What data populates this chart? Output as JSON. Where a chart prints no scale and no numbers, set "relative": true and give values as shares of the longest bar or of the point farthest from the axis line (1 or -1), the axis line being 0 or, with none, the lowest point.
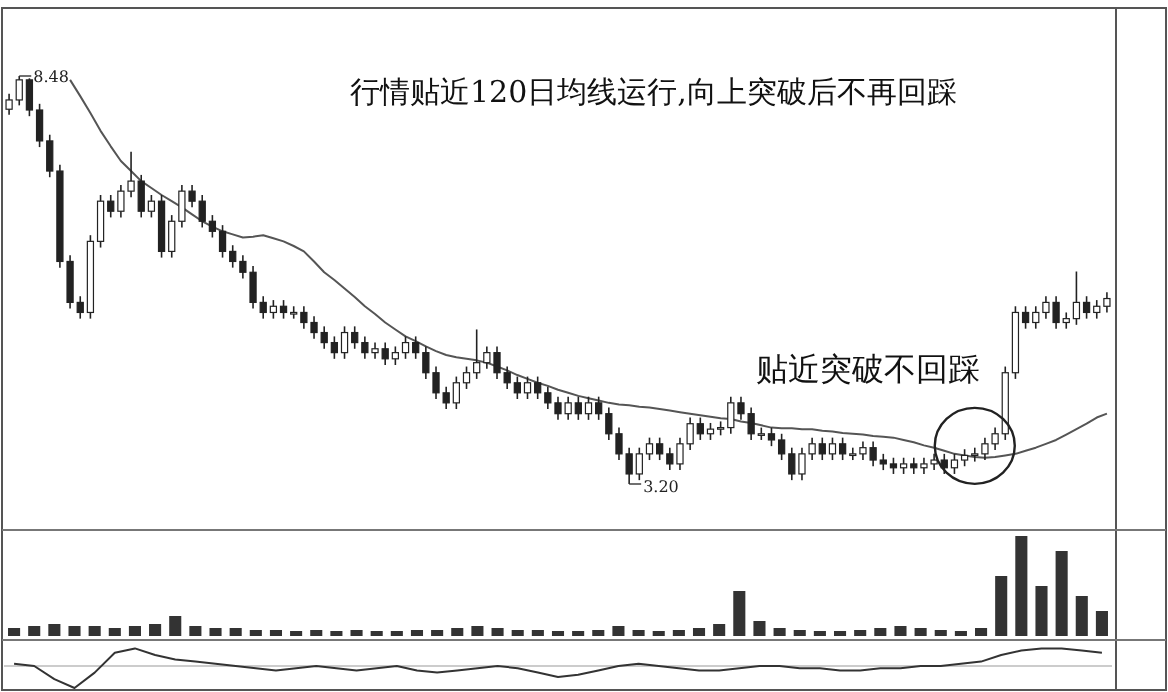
{
  "chart_data": [
    {
      "type": "candlestick",
      "title": "行情贴近120日均线运行,向上突破后不再回踩",
      "color": "#222222",
      "categories": [
        null,
        null,
        null,
        null,
        null,
        null,
        null,
        null,
        null,
        null,
        null,
        null,
        null,
        null,
        null,
        null,
        null,
        null,
        null,
        null,
        null,
        null,
        null,
        null,
        null,
        null,
        null,
        null,
        null,
        null,
        null,
        null,
        null,
        null,
        null,
        null,
        null,
        null,
        null,
        null,
        null,
        null,
        null,
        null,
        null,
        null,
        null,
        null,
        null,
        null,
        null,
        null,
        null,
        null,
        null,
        null,
        null,
        null,
        null,
        null,
        null,
        null,
        null,
        null,
        null,
        null,
        null,
        null,
        null,
        null,
        null,
        null,
        null,
        null,
        null,
        null,
        null,
        null,
        null,
        null,
        null,
        null,
        null,
        null,
        null,
        null,
        null,
        null,
        null,
        null,
        null,
        null,
        null,
        null,
        null,
        null,
        null,
        null,
        null,
        null,
        null,
        null,
        null,
        null,
        null,
        null,
        null,
        null,
        null
      ],
      "ohlc": [
        [
          8.05,
          8.25,
          7.98,
          8.17
        ],
        [
          8.17,
          8.48,
          8.1,
          8.43
        ],
        [
          8.43,
          8.45,
          7.96,
          8.04
        ],
        [
          8.04,
          8.12,
          7.56,
          7.64
        ],
        [
          7.64,
          7.72,
          7.17,
          7.25
        ],
        [
          7.25,
          7.33,
          6.0,
          6.08
        ],
        [
          6.08,
          6.16,
          5.47,
          5.55
        ],
        [
          5.55,
          5.63,
          5.34,
          5.42
        ],
        [
          5.42,
          6.42,
          5.34,
          6.34
        ],
        [
          6.34,
          6.94,
          6.26,
          6.86
        ],
        [
          6.86,
          6.94,
          6.65,
          6.73
        ],
        [
          6.73,
          7.07,
          6.65,
          6.99
        ],
        [
          6.99,
          7.5,
          6.91,
          7.12
        ],
        [
          7.12,
          7.2,
          6.65,
          6.73
        ],
        [
          6.73,
          6.94,
          6.65,
          6.86
        ],
        [
          6.86,
          6.94,
          6.13,
          6.21
        ],
        [
          6.21,
          6.68,
          6.13,
          6.6
        ],
        [
          6.6,
          7.07,
          6.52,
          6.99
        ],
        [
          6.99,
          7.07,
          6.78,
          6.86
        ],
        [
          6.86,
          6.94,
          6.52,
          6.6
        ],
        [
          6.6,
          6.68,
          6.39,
          6.47
        ],
        [
          6.47,
          6.55,
          6.13,
          6.21
        ],
        [
          6.21,
          6.29,
          6.0,
          6.08
        ],
        [
          6.08,
          6.16,
          5.86,
          5.94
        ],
        [
          5.94,
          6.02,
          5.47,
          5.55
        ],
        [
          5.55,
          5.63,
          5.34,
          5.42
        ],
        [
          5.42,
          5.58,
          5.34,
          5.5
        ],
        [
          5.5,
          5.58,
          5.34,
          5.42
        ],
        [
          5.42,
          5.5,
          5.34,
          5.42
        ],
        [
          5.42,
          5.5,
          5.21,
          5.29
        ],
        [
          5.29,
          5.37,
          5.08,
          5.16
        ],
        [
          5.16,
          5.24,
          4.95,
          5.03
        ],
        [
          5.03,
          5.11,
          4.82,
          4.9
        ],
        [
          4.9,
          5.24,
          4.82,
          5.16
        ],
        [
          5.16,
          5.24,
          4.95,
          5.03
        ],
        [
          5.03,
          5.11,
          4.82,
          4.9
        ],
        [
          4.9,
          5.03,
          4.82,
          4.95
        ],
        [
          4.95,
          5.03,
          4.74,
          4.82
        ],
        [
          4.82,
          4.98,
          4.74,
          4.9
        ],
        [
          4.9,
          5.11,
          4.82,
          5.03
        ],
        [
          5.03,
          5.11,
          4.82,
          4.9
        ],
        [
          4.9,
          4.98,
          4.56,
          4.64
        ],
        [
          4.64,
          4.72,
          4.3,
          4.38
        ],
        [
          4.38,
          4.46,
          4.17,
          4.25
        ],
        [
          4.25,
          4.59,
          4.17,
          4.51
        ],
        [
          4.51,
          4.72,
          4.43,
          4.64
        ],
        [
          4.64,
          5.2,
          4.56,
          4.77
        ],
        [
          4.77,
          4.98,
          4.69,
          4.9
        ],
        [
          4.9,
          4.98,
          4.56,
          4.64
        ],
        [
          4.64,
          4.72,
          4.43,
          4.51
        ],
        [
          4.51,
          4.59,
          4.3,
          4.38
        ],
        [
          4.38,
          4.59,
          4.3,
          4.51
        ],
        [
          4.51,
          4.59,
          4.3,
          4.38
        ],
        [
          4.38,
          4.46,
          4.17,
          4.25
        ],
        [
          4.25,
          4.33,
          4.03,
          4.11
        ],
        [
          4.11,
          4.33,
          4.03,
          4.25
        ],
        [
          4.25,
          4.33,
          4.03,
          4.11
        ],
        [
          4.11,
          4.33,
          4.03,
          4.25
        ],
        [
          4.25,
          4.33,
          4.03,
          4.11
        ],
        [
          4.11,
          4.19,
          3.77,
          3.85
        ],
        [
          3.85,
          3.93,
          3.51,
          3.59
        ],
        [
          3.59,
          3.67,
          3.2,
          3.33
        ],
        [
          3.33,
          3.67,
          3.25,
          3.59
        ],
        [
          3.59,
          3.8,
          3.51,
          3.72
        ],
        [
          3.72,
          3.8,
          3.51,
          3.59
        ],
        [
          3.59,
          3.67,
          3.38,
          3.46
        ],
        [
          3.46,
          3.8,
          3.38,
          3.72
        ],
        [
          3.72,
          4.06,
          3.64,
          3.98
        ],
        [
          3.98,
          4.06,
          3.77,
          3.85
        ],
        [
          3.85,
          3.99,
          3.77,
          3.91
        ],
        [
          3.91,
          4.01,
          3.83,
          3.93
        ],
        [
          3.93,
          4.33,
          3.85,
          4.25
        ],
        [
          4.25,
          4.33,
          4.03,
          4.11
        ],
        [
          4.11,
          4.19,
          3.77,
          3.85
        ],
        [
          3.85,
          3.93,
          3.77,
          3.85
        ],
        [
          3.85,
          3.93,
          3.69,
          3.77
        ],
        [
          3.77,
          3.85,
          3.51,
          3.59
        ],
        [
          3.59,
          3.67,
          3.25,
          3.33
        ],
        [
          3.33,
          3.67,
          3.25,
          3.59
        ],
        [
          3.59,
          3.8,
          3.51,
          3.72
        ],
        [
          3.72,
          3.8,
          3.51,
          3.59
        ],
        [
          3.59,
          3.8,
          3.51,
          3.72
        ],
        [
          3.72,
          3.8,
          3.51,
          3.59
        ],
        [
          3.59,
          3.67,
          3.51,
          3.59
        ],
        [
          3.59,
          3.75,
          3.51,
          3.67
        ],
        [
          3.67,
          3.75,
          3.43,
          3.51
        ],
        [
          3.51,
          3.59,
          3.38,
          3.46
        ],
        [
          3.46,
          3.54,
          3.33,
          3.41
        ],
        [
          3.41,
          3.54,
          3.33,
          3.46
        ],
        [
          3.46,
          3.54,
          3.33,
          3.41
        ],
        [
          3.41,
          3.54,
          3.33,
          3.46
        ],
        [
          3.46,
          3.59,
          3.38,
          3.51
        ],
        [
          3.51,
          3.59,
          3.33,
          3.41
        ],
        [
          3.41,
          3.59,
          3.33,
          3.51
        ],
        [
          3.51,
          3.65,
          3.43,
          3.57
        ],
        [
          3.57,
          3.67,
          3.49,
          3.59
        ],
        [
          3.59,
          3.8,
          3.51,
          3.72
        ],
        [
          3.72,
          3.93,
          3.64,
          3.85
        ],
        [
          3.85,
          4.72,
          3.77,
          4.64
        ],
        [
          4.64,
          5.5,
          4.56,
          5.42
        ],
        [
          5.42,
          5.5,
          5.21,
          5.29
        ],
        [
          5.29,
          5.5,
          5.21,
          5.42
        ],
        [
          5.42,
          5.63,
          5.34,
          5.55
        ],
        [
          5.55,
          5.63,
          5.21,
          5.29
        ],
        [
          5.29,
          5.42,
          5.21,
          5.34
        ],
        [
          5.34,
          5.95,
          5.26,
          5.55
        ],
        [
          5.55,
          5.63,
          5.34,
          5.42
        ],
        [
          5.42,
          5.58,
          5.34,
          5.5
        ],
        [
          5.5,
          5.68,
          5.42,
          5.6
        ]
      ],
      "series": [
        {
          "type": "line",
          "color": "#555555",
          "values": [
            null,
            null,
            null,
            null,
            null,
            null,
            8.43,
            8.22,
            8.0,
            7.77,
            7.57,
            7.38,
            7.25,
            7.12,
            7.03,
            6.94,
            6.86,
            6.78,
            6.69,
            6.6,
            6.53,
            6.47,
            6.43,
            6.39,
            6.4,
            6.42,
            6.38,
            6.34,
            6.28,
            6.21,
            6.08,
            5.94,
            5.84,
            5.73,
            5.62,
            5.5,
            5.4,
            5.29,
            5.2,
            5.11,
            5.05,
            4.98,
            4.92,
            4.87,
            4.84,
            4.82,
            4.8,
            4.77,
            4.72,
            4.67,
            4.61,
            4.56,
            4.51,
            4.47,
            4.42,
            4.38,
            4.34,
            4.31,
            4.28,
            4.25,
            4.23,
            4.22,
            4.2,
            4.19,
            4.17,
            4.15,
            4.13,
            4.11,
            4.09,
            4.07,
            4.05,
            4.04,
            4.01,
            3.99,
            3.96,
            3.93,
            3.92,
            3.92,
            3.91,
            3.91,
            3.89,
            3.88,
            3.86,
            3.85,
            3.84,
            3.82,
            3.81,
            3.8,
            3.77,
            3.74,
            3.7,
            3.67,
            3.63,
            3.59,
            3.57,
            3.55,
            3.54,
            3.55,
            3.57,
            3.59,
            3.63,
            3.67,
            3.72,
            3.77,
            3.84,
            3.91,
            3.98,
            4.06,
            4.11
          ]
        }
      ],
      "annotations": [
        "8.48",
        "3.20",
        "贴近突破不回踩"
      ]
    },
    {
      "type": "bar",
      "relative": true,
      "color": "#333333",
      "categories": [
        null,
        null,
        null,
        null,
        null,
        null,
        null,
        null,
        null,
        null,
        null,
        null,
        null,
        null,
        null,
        null,
        null,
        null,
        null,
        null,
        null,
        null,
        null,
        null,
        null,
        null,
        null,
        null,
        null,
        null,
        null,
        null,
        null,
        null,
        null,
        null,
        null,
        null,
        null,
        null,
        null,
        null,
        null,
        null,
        null,
        null,
        null,
        null,
        null,
        null,
        null,
        null,
        null,
        null,
        null
      ],
      "values": [
        0.08,
        0.1,
        0.12,
        0.1,
        0.1,
        0.08,
        0.1,
        0.12,
        0.2,
        0.1,
        0.08,
        0.08,
        0.06,
        0.06,
        0.05,
        0.06,
        0.05,
        0.06,
        0.05,
        0.05,
        0.06,
        0.06,
        0.08,
        0.1,
        0.08,
        0.06,
        0.06,
        0.05,
        0.05,
        0.06,
        0.1,
        0.06,
        0.05,
        0.06,
        0.08,
        0.12,
        0.45,
        0.15,
        0.08,
        0.06,
        0.05,
        0.05,
        0.06,
        0.08,
        0.1,
        0.08,
        0.06,
        0.05,
        0.08,
        0.6,
        1.0,
        0.5,
        0.85,
        0.4,
        0.25
      ]
    },
    {
      "type": "line",
      "relative": true,
      "color": "#333333",
      "categories": [
        null,
        null,
        null,
        null,
        null,
        null,
        null,
        null,
        null,
        null,
        null,
        null,
        null,
        null,
        null,
        null,
        null,
        null,
        null,
        null,
        null,
        null,
        null,
        null,
        null,
        null,
        null,
        null,
        null,
        null,
        null,
        null,
        null,
        null,
        null,
        null,
        null,
        null,
        null,
        null,
        null,
        null,
        null,
        null,
        null,
        null,
        null,
        null,
        null,
        null,
        null,
        null,
        null,
        null,
        null
      ],
      "values": [
        0.1,
        0.0,
        -0.6,
        -1.0,
        -0.3,
        0.6,
        0.8,
        0.5,
        0.3,
        0.2,
        0.1,
        0.0,
        -0.1,
        -0.2,
        -0.1,
        0.0,
        -0.1,
        -0.2,
        -0.1,
        0.0,
        -0.2,
        -0.3,
        -0.2,
        -0.1,
        0.0,
        -0.1,
        -0.3,
        -0.5,
        -0.4,
        -0.2,
        0.0,
        0.1,
        0.0,
        -0.1,
        -0.2,
        -0.2,
        -0.1,
        0.0,
        0.0,
        -0.1,
        -0.1,
        -0.2,
        -0.2,
        -0.1,
        -0.1,
        0.0,
        0.0,
        0.1,
        0.2,
        0.5,
        0.7,
        0.8,
        0.8,
        0.7,
        0.6
      ]
    }
  ]
}
